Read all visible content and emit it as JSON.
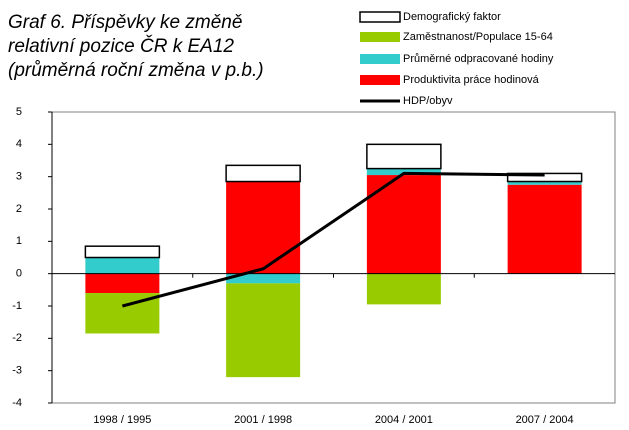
{
  "chart_data": {
    "type": "bar",
    "stacked": true,
    "title": [
      "Graf 6. Příspěvky ke změně",
      "relativní pozice ČR k EA12",
      "(průměrná roční změna v p.b.)"
    ],
    "categories": [
      "1998 / 1995",
      "2001 / 1998",
      "2004 / 2001",
      "2007 / 2004"
    ],
    "series": [
      {
        "name": "Demografický faktor",
        "color": "#ffffff",
        "values": [
          0.35,
          0.5,
          0.75,
          0.25
        ]
      },
      {
        "name": "Zaměstnanost/Populace 15-64",
        "color": "#99cc00",
        "values": [
          -1.25,
          -2.9,
          -0.95,
          0
        ]
      },
      {
        "name": "Průměrné odpracované hodiny",
        "color": "#33cccc",
        "values": [
          0.5,
          -0.3,
          0.2,
          0.1
        ]
      },
      {
        "name": "Produktivita práce hodinová",
        "color": "#ff0000",
        "values": [
          -0.6,
          2.85,
          3.05,
          2.75
        ]
      },
      {
        "name": "HDP/obyv",
        "color": "#000000",
        "type": "line",
        "values": [
          -1.0,
          0.15,
          3.1,
          3.05
        ]
      }
    ],
    "ylim": [
      -4,
      5
    ],
    "yticks": [
      -4,
      -3,
      -2,
      -1,
      0,
      1,
      2,
      3,
      4,
      5
    ]
  }
}
